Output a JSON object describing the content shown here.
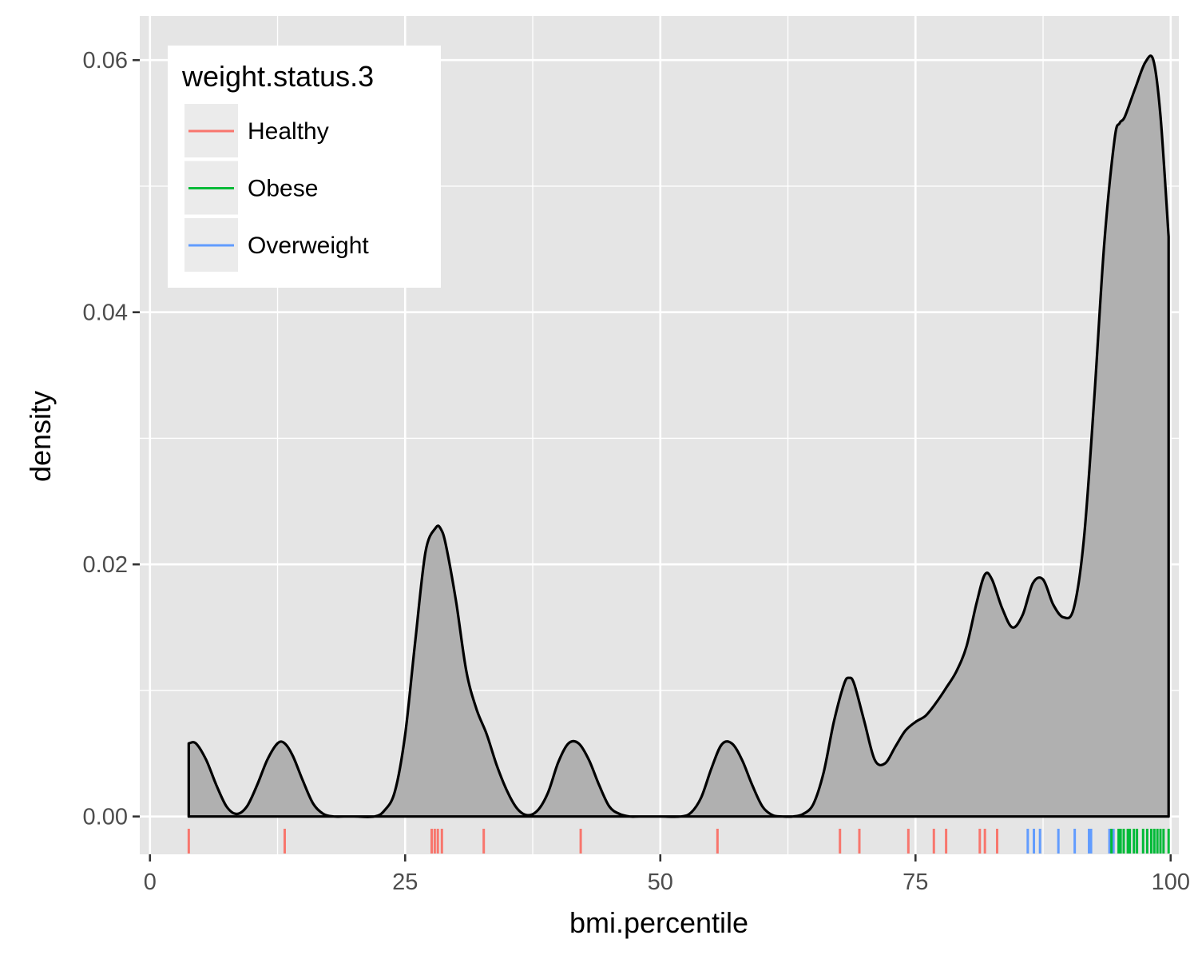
{
  "chart_data": {
    "type": "area",
    "title": "",
    "xlabel": "bmi.percentile",
    "ylabel": "density",
    "xlim": [
      -1,
      100.8
    ],
    "ylim": [
      -0.003,
      0.0635
    ],
    "x_ticks": [
      0,
      25,
      50,
      75,
      100
    ],
    "x_tick_labels": [
      "0",
      "25",
      "50",
      "75",
      "100"
    ],
    "y_ticks": [
      0.0,
      0.02,
      0.04,
      0.06
    ],
    "y_tick_labels": [
      "0.00",
      "0.02",
      "0.04",
      "0.06"
    ],
    "grid": true,
    "colors": {
      "panel_background": "#E5E5E5",
      "grid": "#FFFFFF",
      "density_fill": "#B0B0B0",
      "density_line": "#000000",
      "Healthy": "#F8766D",
      "Obese": "#00BA38",
      "Overweight": "#619CFF"
    },
    "density_curve": {
      "x": [
        3.8,
        4.5,
        5.5,
        6.5,
        7.5,
        8.5,
        9.5,
        10.5,
        11.5,
        12.5,
        13.2,
        14,
        15,
        16,
        17,
        18,
        19,
        20,
        22,
        23,
        24,
        25,
        26,
        27,
        28,
        28.5,
        29,
        30,
        31,
        32,
        33,
        34,
        35,
        36,
        37,
        38,
        39,
        40,
        41,
        42,
        43,
        44,
        45,
        46,
        47,
        48,
        50,
        52,
        53,
        54,
        55,
        56,
        57,
        58,
        59,
        60,
        61,
        62,
        63,
        64,
        65,
        66,
        67,
        68,
        68.5,
        69,
        70,
        71,
        72,
        73,
        74,
        75,
        76,
        77,
        78,
        79,
        80,
        81,
        81.8,
        82.5,
        83.5,
        84.5,
        85.5,
        86.5,
        87.5,
        88.5,
        89.5,
        90.5,
        91.5,
        92.5,
        93.5,
        94.5,
        95,
        95.5,
        96.5,
        97.5,
        98.3,
        99,
        99.8
      ],
      "y": [
        0.0058,
        0.0058,
        0.0045,
        0.0025,
        0.0008,
        0.0002,
        0.0008,
        0.0025,
        0.0045,
        0.0058,
        0.0058,
        0.0048,
        0.0028,
        0.001,
        0.0002,
        0.0,
        0.0,
        0.0,
        0.0,
        0.0005,
        0.002,
        0.0065,
        0.014,
        0.021,
        0.0229,
        0.0228,
        0.0215,
        0.017,
        0.0115,
        0.0085,
        0.0065,
        0.004,
        0.002,
        0.0006,
        0.0001,
        0.0005,
        0.0019,
        0.0043,
        0.0058,
        0.0058,
        0.0045,
        0.0025,
        0.0008,
        0.0002,
        0.0,
        0.0,
        0.0,
        0.0,
        0.0003,
        0.0015,
        0.0038,
        0.0057,
        0.0058,
        0.0045,
        0.0025,
        0.0008,
        0.0001,
        0.0,
        0.0,
        0.0002,
        0.001,
        0.0035,
        0.0075,
        0.0105,
        0.011,
        0.0105,
        0.0075,
        0.0045,
        0.0042,
        0.0055,
        0.0068,
        0.0075,
        0.008,
        0.009,
        0.0102,
        0.0115,
        0.0135,
        0.017,
        0.0192,
        0.0188,
        0.0165,
        0.015,
        0.016,
        0.0185,
        0.0188,
        0.0168,
        0.0158,
        0.0165,
        0.022,
        0.033,
        0.0455,
        0.0537,
        0.055,
        0.0555,
        0.0577,
        0.0598,
        0.06,
        0.0556,
        0.046
      ]
    },
    "rug": [
      {
        "group": "Healthy",
        "x": [
          3.8,
          13.2,
          27.6,
          27.9,
          28.2,
          28.6,
          32.7,
          42.2,
          55.6,
          67.6,
          69.5,
          74.3,
          76.8,
          78,
          81.3,
          81.8,
          83
        ]
      },
      {
        "group": "Overweight",
        "x": [
          86,
          86.6,
          87.2,
          89,
          90.6,
          92,
          92.2,
          94,
          94.4
        ]
      },
      {
        "group": "Obese",
        "x": [
          94.2,
          94.9,
          95.1,
          95.4,
          95.8,
          96,
          96.4,
          96.7,
          97.3,
          97.7,
          98.1,
          98.4,
          98.7,
          99,
          99.3,
          99.8
        ]
      }
    ],
    "legend": {
      "title": "weight.status.3",
      "position": "top-left",
      "entries": [
        "Healthy",
        "Obese",
        "Overweight"
      ]
    }
  }
}
